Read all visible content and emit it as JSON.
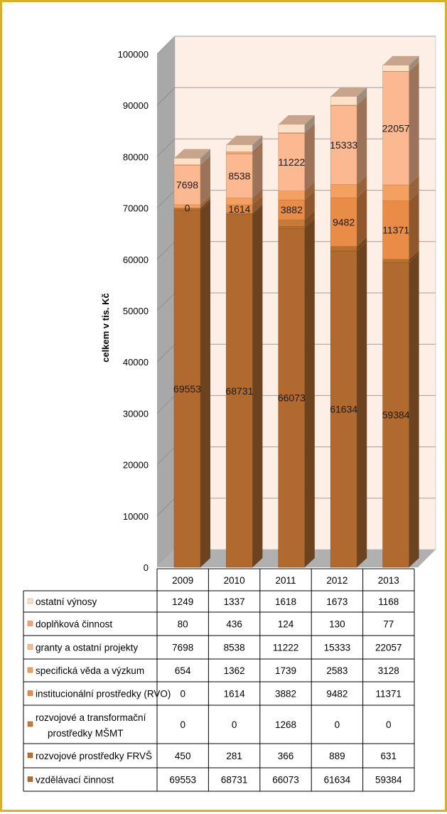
{
  "chart_data": {
    "type": "bar",
    "stacked": true,
    "three_d": true,
    "title": "",
    "xlabel": "",
    "ylabel": "celkem v tis. Kč",
    "ylim": [
      0,
      100000
    ],
    "yticks": [
      0,
      10000,
      20000,
      30000,
      40000,
      50000,
      60000,
      70000,
      80000,
      90000,
      100000
    ],
    "grid": true,
    "legend": "data-table",
    "categories": [
      "2009",
      "2010",
      "2011",
      "2012",
      "2013"
    ],
    "series": [
      {
        "name": "vzdělávací činnost",
        "color": "#b06a30",
        "values": [
          69553,
          68731,
          66073,
          61634,
          59384
        ],
        "labeled": true
      },
      {
        "name": "rozvojové prostředky FRVŠ",
        "color": "#b8702e",
        "values": [
          450,
          281,
          366,
          889,
          631
        ],
        "labeled": false
      },
      {
        "name": "rozvojové a transformační prostředky MŠMT",
        "color": "#c87a3a",
        "values": [
          0,
          0,
          1268,
          0,
          0
        ],
        "labeled": false
      },
      {
        "name": "institucionální prostředky (RVO)",
        "color": "#e88c48",
        "values": [
          0,
          1614,
          3882,
          9482,
          11371
        ],
        "labeled": true
      },
      {
        "name": "specifická věda a výzkum",
        "color": "#f4a060",
        "values": [
          654,
          1362,
          1739,
          2583,
          3128
        ],
        "labeled": false
      },
      {
        "name": "granty a ostatní projekty",
        "color": "#fcb890",
        "values": [
          7698,
          8538,
          11222,
          15333,
          22057
        ],
        "labeled": true
      },
      {
        "name": "doplňková činnost",
        "color": "#f8a46c",
        "values": [
          80,
          436,
          124,
          130,
          77
        ],
        "labeled": false
      },
      {
        "name": "ostatní výnosy",
        "color": "#fde0c8",
        "values": [
          1249,
          1337,
          1618,
          1673,
          1168
        ],
        "labeled": false
      }
    ],
    "table_row_order": [
      "ostatní výnosy",
      "doplňková činnost",
      "granty a ostatní projekty",
      "specifická věda a výzkum",
      "institucionální prostředky (RVO)",
      "rozvojové a transformační prostředky MŠMT",
      "rozvojové prostředky FRVŠ",
      "vzdělávací činnost"
    ],
    "colors": {
      "back_wall": "#fdeee6",
      "side_wall": "#a8a8a8",
      "floor": "#b0b0b0",
      "gridline": "#a0a0a0"
    }
  }
}
